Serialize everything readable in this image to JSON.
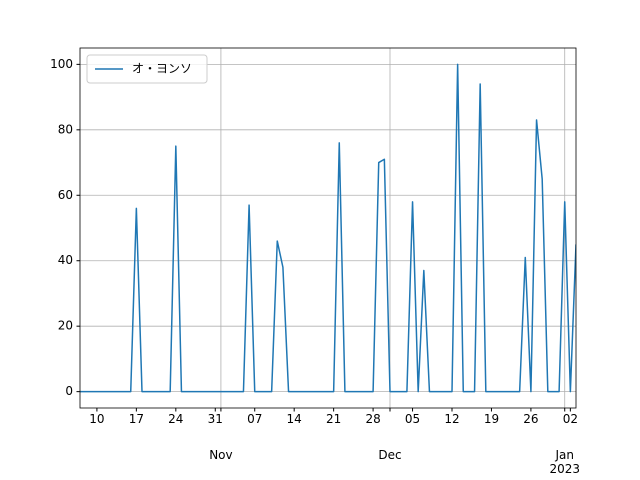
{
  "chart_data": {
    "type": "line",
    "x": [
      "2022-10-07",
      "2022-10-08",
      "2022-10-09",
      "2022-10-10",
      "2022-10-11",
      "2022-10-12",
      "2022-10-13",
      "2022-10-14",
      "2022-10-15",
      "2022-10-16",
      "2022-10-17",
      "2022-10-18",
      "2022-10-19",
      "2022-10-20",
      "2022-10-21",
      "2022-10-22",
      "2022-10-23",
      "2022-10-24",
      "2022-10-25",
      "2022-10-26",
      "2022-10-27",
      "2022-10-28",
      "2022-10-29",
      "2022-10-30",
      "2022-10-31",
      "2022-11-01",
      "2022-11-02",
      "2022-11-03",
      "2022-11-04",
      "2022-11-05",
      "2022-11-06",
      "2022-11-07",
      "2022-11-08",
      "2022-11-09",
      "2022-11-10",
      "2022-11-11",
      "2022-11-12",
      "2022-11-13",
      "2022-11-14",
      "2022-11-15",
      "2022-11-16",
      "2022-11-17",
      "2022-11-18",
      "2022-11-19",
      "2022-11-20",
      "2022-11-21",
      "2022-11-22",
      "2022-11-23",
      "2022-11-24",
      "2022-11-25",
      "2022-11-26",
      "2022-11-27",
      "2022-11-28",
      "2022-11-29",
      "2022-11-30",
      "2022-12-01",
      "2022-12-02",
      "2022-12-03",
      "2022-12-04",
      "2022-12-05",
      "2022-12-06",
      "2022-12-07",
      "2022-12-08",
      "2022-12-09",
      "2022-12-10",
      "2022-12-11",
      "2022-12-12",
      "2022-12-13",
      "2022-12-14",
      "2022-12-15",
      "2022-12-16",
      "2022-12-17",
      "2022-12-18",
      "2022-12-19",
      "2022-12-20",
      "2022-12-21",
      "2022-12-22",
      "2022-12-23",
      "2022-12-24",
      "2022-12-25",
      "2022-12-26",
      "2022-12-27",
      "2022-12-28",
      "2022-12-29",
      "2022-12-30",
      "2022-12-31",
      "2023-01-01",
      "2023-01-02",
      "2023-01-03"
    ],
    "series": [
      {
        "name": "オ・ヨンソ",
        "color": "#1f77b4",
        "values": [
          0,
          0,
          0,
          0,
          0,
          0,
          0,
          0,
          0,
          0,
          56,
          0,
          0,
          0,
          0,
          0,
          0,
          75,
          0,
          0,
          0,
          0,
          0,
          0,
          0,
          0,
          0,
          0,
          0,
          0,
          57,
          0,
          0,
          0,
          0,
          46,
          38,
          0,
          0,
          0,
          0,
          0,
          0,
          0,
          0,
          0,
          76,
          0,
          0,
          0,
          0,
          0,
          0,
          70,
          71,
          0,
          0,
          0,
          0,
          58,
          0,
          37,
          0,
          0,
          0,
          0,
          0,
          100,
          0,
          0,
          0,
          94,
          0,
          0,
          0,
          0,
          0,
          0,
          0,
          41,
          0,
          83,
          65,
          0,
          0,
          0,
          58,
          0,
          45
        ]
      }
    ],
    "xlim": [
      "2022-10-07",
      "2023-01-03"
    ],
    "xticks": [
      {
        "value": "2022-10-10",
        "label": "10"
      },
      {
        "value": "2022-10-17",
        "label": "17"
      },
      {
        "value": "2022-10-24",
        "label": "24"
      },
      {
        "value": "2022-10-31",
        "label": "31"
      },
      {
        "value": "2022-11-07",
        "label": "07"
      },
      {
        "value": "2022-11-14",
        "label": "14"
      },
      {
        "value": "2022-11-21",
        "label": "21"
      },
      {
        "value": "2022-11-28",
        "label": "28"
      },
      {
        "value": "2022-12-05",
        "label": "05"
      },
      {
        "value": "2022-12-12",
        "label": "12"
      },
      {
        "value": "2022-12-19",
        "label": "19"
      },
      {
        "value": "2022-12-26",
        "label": "26"
      },
      {
        "value": "2023-01-02",
        "label": "02"
      }
    ],
    "xmajorticks": [
      {
        "value": "2022-11-01",
        "label": "Nov"
      },
      {
        "value": "2022-12-01",
        "label": "Dec"
      },
      {
        "value": "2023-01-01",
        "label": "Jan",
        "sublabel": "2023"
      }
    ],
    "ylim": [
      -5,
      105
    ],
    "yticks": [
      0,
      20,
      40,
      60,
      80,
      100
    ],
    "grid": true,
    "legend": "upper left"
  }
}
